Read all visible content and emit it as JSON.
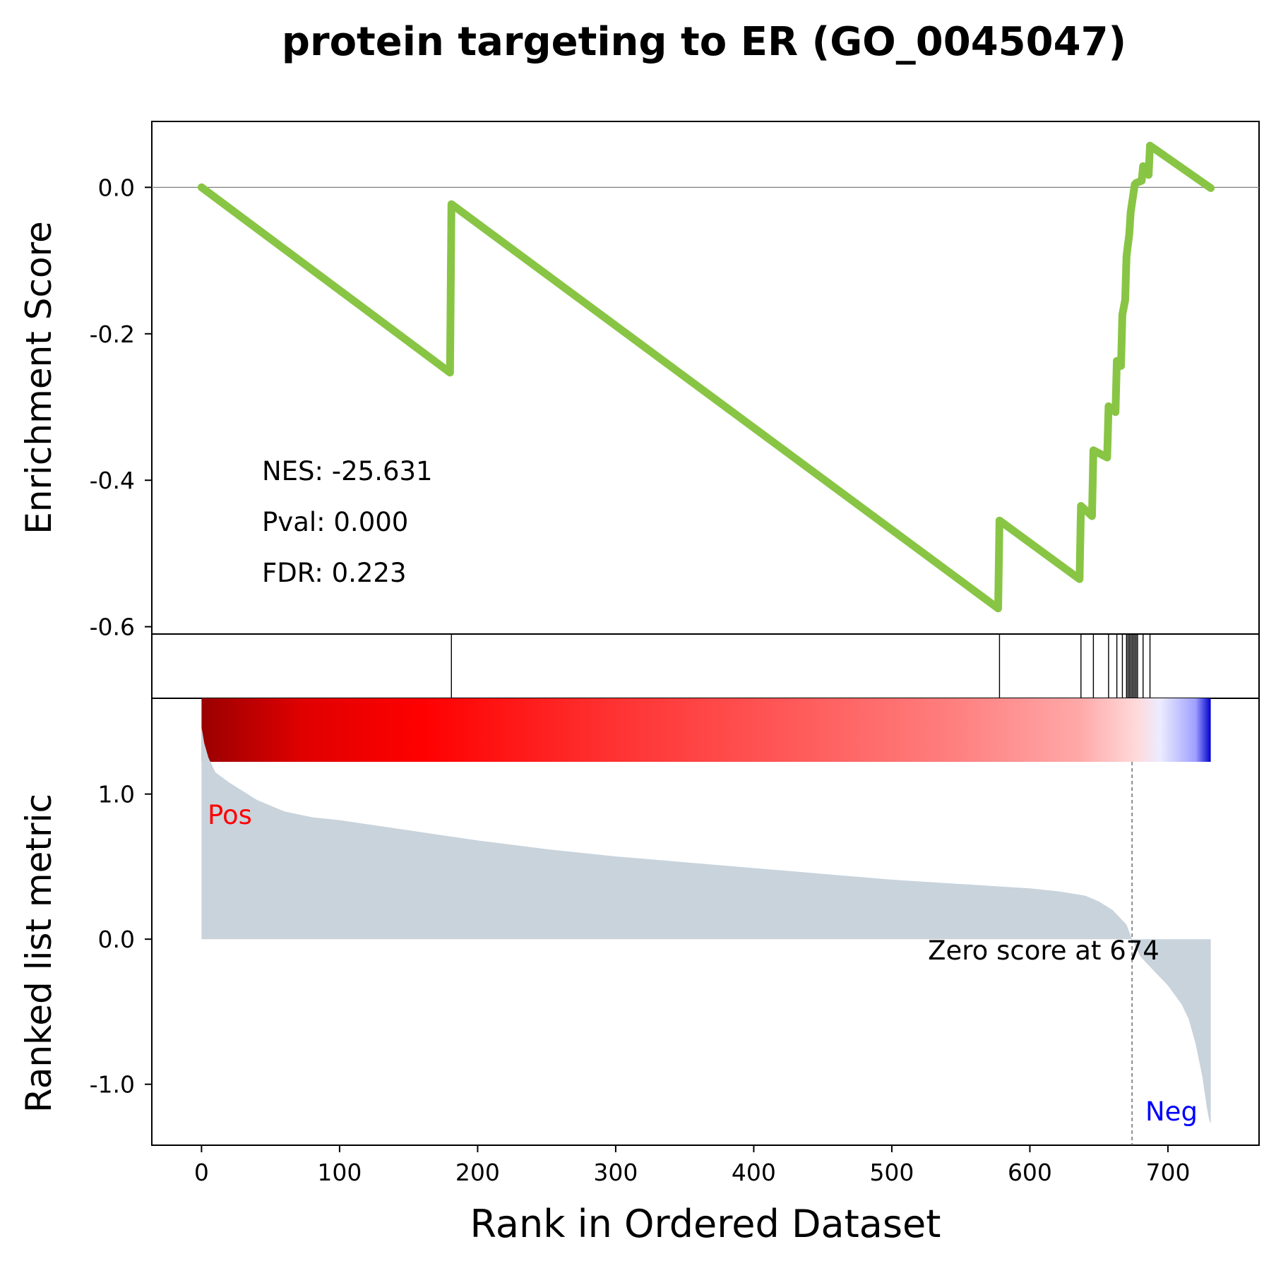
{
  "chart_data": {
    "type": "line",
    "title": "protein targeting to ER (GO_0045047)",
    "xlabel": "Rank in Ordered Dataset",
    "xlim": [
      -36,
      766
    ],
    "x_ticks": [
      "0",
      "100",
      "200",
      "300",
      "400",
      "500",
      "600",
      "700"
    ],
    "x_tick_values": [
      0,
      100,
      200,
      300,
      400,
      500,
      600,
      700
    ],
    "enrichment_panel": {
      "ylabel": "Enrichment Score",
      "ylim": [
        -0.61,
        0.09
      ],
      "y_ticks": [
        "0.0",
        "-0.2",
        "-0.4",
        "-0.6"
      ],
      "y_tick_values": [
        0.0,
        -0.2,
        -0.4,
        -0.6
      ],
      "line_color": "#88c544",
      "zero_line_color": "#808080",
      "series": [
        {
          "x": [
            0,
            180,
            181,
            577,
            578,
            636,
            637,
            645,
            646,
            656,
            657,
            662,
            663,
            666,
            667,
            669,
            670,
            672,
            673,
            676,
            677,
            681,
            682,
            686,
            687,
            731
          ],
          "y": [
            0.0,
            -0.253,
            -0.023,
            -0.575,
            -0.455,
            -0.535,
            -0.435,
            -0.449,
            -0.359,
            -0.369,
            -0.299,
            -0.307,
            -0.237,
            -0.244,
            -0.174,
            -0.154,
            -0.094,
            -0.064,
            -0.034,
            0.004,
            0.006,
            0.009,
            0.029,
            0.017,
            0.057,
            -0.001
          ]
        }
      ],
      "stats": {
        "nes": "NES: -25.631",
        "pval": "Pval: 0.000",
        "fdr": "FDR: 0.223"
      }
    },
    "hits_panel": {
      "hit_ranks": [
        181,
        578,
        637,
        646,
        657,
        663,
        667,
        670,
        671,
        672,
        673,
        674,
        675,
        676,
        677,
        678,
        682,
        687
      ],
      "hit_color": "#000000"
    },
    "color_bar": {
      "colors": [
        "#9a0000",
        "#e00000",
        "#ff0000",
        "#ff3030",
        "#ff5858",
        "#ff8080",
        "#ffa8a8",
        "#ffd8d8",
        "#ececff",
        "#a0a0ff",
        "#0000cc"
      ],
      "stops": [
        0,
        0.1,
        0.22,
        0.4,
        0.58,
        0.75,
        0.87,
        0.925,
        0.95,
        0.985,
        1.0
      ]
    },
    "ranked_panel": {
      "ylabel": "Ranked list metric",
      "ylim": [
        -1.42,
        1.66
      ],
      "y_ticks": [
        "1.0",
        "0.0",
        "-1.0"
      ],
      "y_tick_values": [
        1.0,
        0.0,
        -1.0
      ],
      "fill_color": "#c8d3dc",
      "series": [
        {
          "x": [
            0,
            2,
            5,
            10,
            20,
            30,
            40,
            60,
            80,
            100,
            150,
            200,
            250,
            300,
            350,
            400,
            450,
            500,
            550,
            600,
            620,
            640,
            650,
            660,
            670,
            674,
            680,
            690,
            700,
            710,
            715,
            720,
            725,
            728,
            730,
            731
          ],
          "y": [
            1.46,
            1.35,
            1.25,
            1.15,
            1.08,
            1.02,
            0.96,
            0.88,
            0.84,
            0.82,
            0.75,
            0.68,
            0.62,
            0.57,
            0.53,
            0.49,
            0.45,
            0.41,
            0.38,
            0.35,
            0.33,
            0.3,
            0.26,
            0.2,
            0.1,
            0.0,
            -0.12,
            -0.22,
            -0.32,
            -0.45,
            -0.55,
            -0.72,
            -0.95,
            -1.15,
            -1.25,
            -1.27
          ]
        }
      ],
      "pos_label": "Pos",
      "neg_label": "Neg",
      "pos_color": "#ff0000",
      "neg_color": "#0000ff",
      "zero_score_rank": 674,
      "zero_score_label": "Zero score at 674"
    }
  }
}
